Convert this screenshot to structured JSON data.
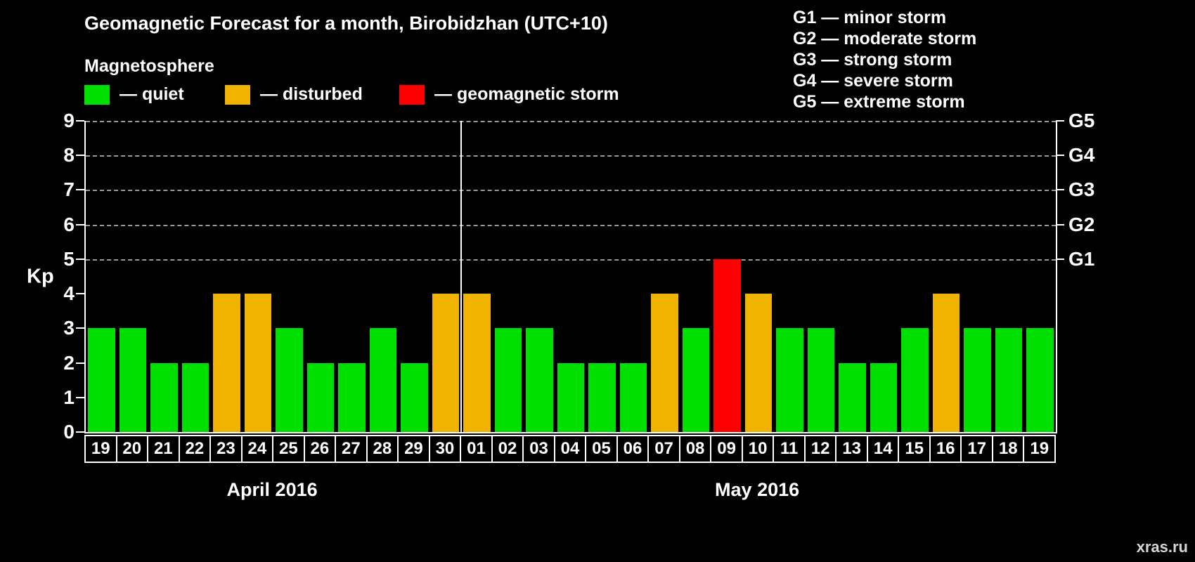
{
  "title": "Geomagnetic Forecast for a month, Birobidzhan (UTC+10)",
  "legend": {
    "heading": "Magnetosphere",
    "items": [
      {
        "label": "— quiet",
        "color": "#00e000",
        "status": "quiet"
      },
      {
        "label": "— disturbed",
        "color": "#f0b400",
        "status": "disturbed"
      },
      {
        "label": "— geomagnetic storm",
        "color": "#ff0000",
        "status": "storm"
      }
    ]
  },
  "storm_scale": [
    "G1 — minor storm",
    "G2 — moderate storm",
    "G3 — strong storm",
    "G4 — severe storm",
    "G5 — extreme storm"
  ],
  "watermark": "xras.ru",
  "chart_data": {
    "type": "bar",
    "title": "Geomagnetic Forecast for a month, Birobidzhan (UTC+10)",
    "xlabel": "",
    "ylabel": "Kp",
    "ylim": [
      0,
      9
    ],
    "yticks": [
      0,
      1,
      2,
      3,
      4,
      5,
      6,
      7,
      8,
      9
    ],
    "grid_levels": [
      5,
      6,
      7,
      8,
      9
    ],
    "grid": "dashed-horizontal",
    "legend_position": "top",
    "g_levels": [
      {
        "label": "G1",
        "kp": 5
      },
      {
        "label": "G2",
        "kp": 6
      },
      {
        "label": "G3",
        "kp": 7
      },
      {
        "label": "G4",
        "kp": 8
      },
      {
        "label": "G5",
        "kp": 9
      }
    ],
    "months": [
      {
        "label": "April 2016",
        "days": 12
      },
      {
        "label": "May 2016",
        "days": 19
      }
    ],
    "categories": [
      "19",
      "20",
      "21",
      "22",
      "23",
      "24",
      "25",
      "26",
      "27",
      "28",
      "29",
      "30",
      "01",
      "02",
      "03",
      "04",
      "05",
      "06",
      "07",
      "08",
      "09",
      "10",
      "11",
      "12",
      "13",
      "14",
      "15",
      "16",
      "17",
      "18",
      "19"
    ],
    "values": [
      3,
      3,
      2,
      2,
      4,
      4,
      3,
      2,
      2,
      3,
      2,
      4,
      4,
      3,
      3,
      2,
      2,
      2,
      4,
      3,
      5,
      4,
      3,
      3,
      2,
      2,
      3,
      4,
      3,
      3,
      3
    ],
    "statuses": [
      "quiet",
      "quiet",
      "quiet",
      "quiet",
      "disturbed",
      "disturbed",
      "quiet",
      "quiet",
      "quiet",
      "quiet",
      "quiet",
      "disturbed",
      "disturbed",
      "quiet",
      "quiet",
      "quiet",
      "quiet",
      "quiet",
      "disturbed",
      "quiet",
      "storm",
      "disturbed",
      "quiet",
      "quiet",
      "quiet",
      "quiet",
      "quiet",
      "disturbed",
      "quiet",
      "quiet",
      "quiet"
    ],
    "colors": {
      "quiet": "#00e000",
      "disturbed": "#f0b400",
      "storm": "#ff0000"
    }
  }
}
